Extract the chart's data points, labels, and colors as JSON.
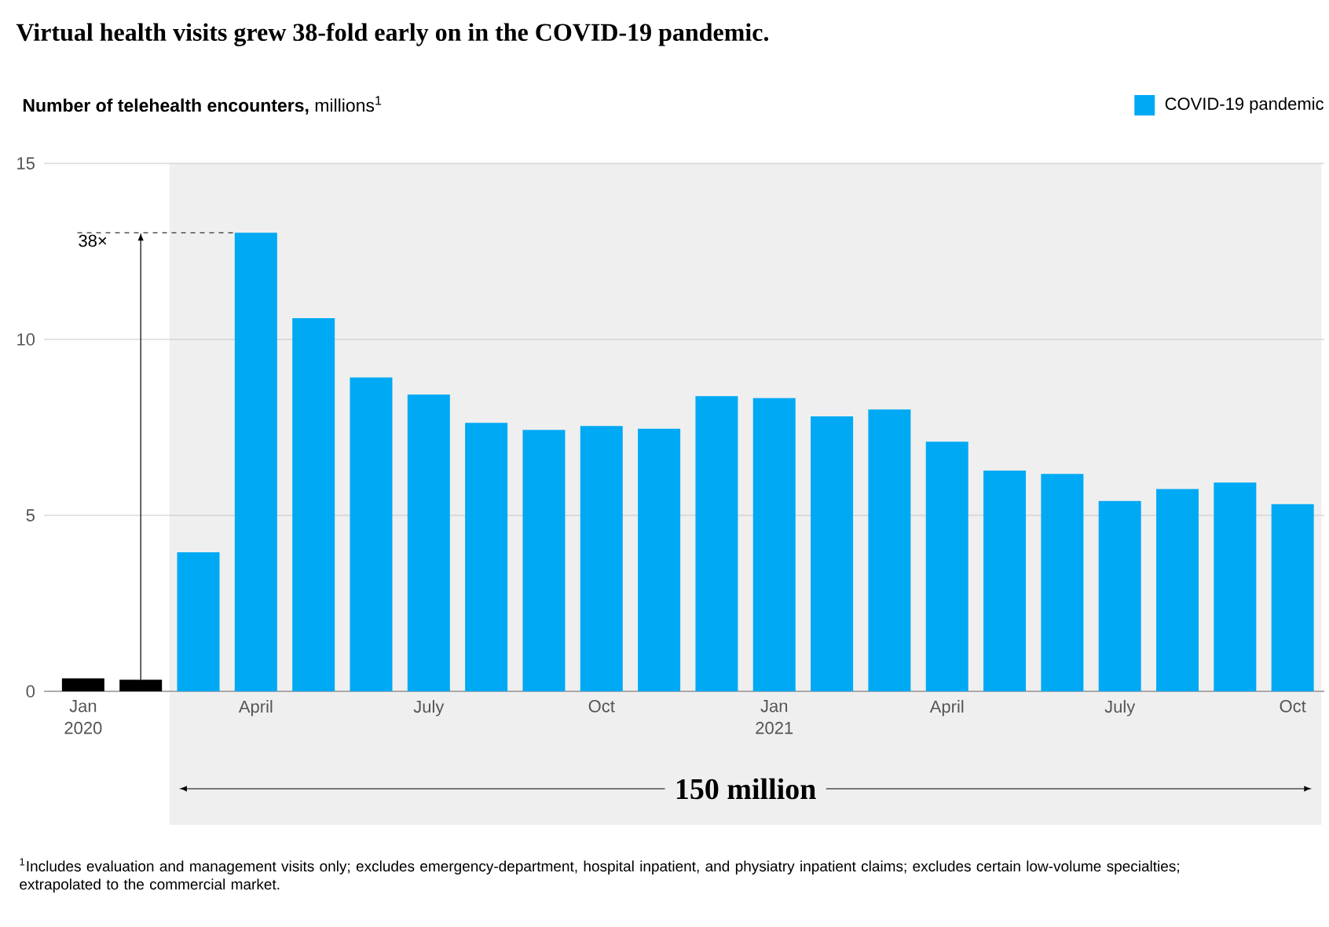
{
  "chart_data": {
    "type": "bar",
    "title": "Virtual health visits grew 38-fold early on in the COVID-19 pandemic.",
    "ylabel": "**Number of telehealth encounters,** millions$^{1}$",
    "categories": [
      "Jan 2020",
      null,
      null,
      "April",
      null,
      null,
      "July",
      null,
      null,
      "Oct",
      null,
      null,
      "Jan 2021",
      null,
      null,
      "April",
      null,
      null,
      "July",
      null,
      null,
      "Oct"
    ],
    "series": [
      {
        "color": "#000000",
        "values": [
          0.37,
          0.33,
          null,
          null,
          null,
          null,
          null,
          null,
          null,
          null,
          null,
          null,
          null,
          null,
          null,
          null,
          null,
          null,
          null,
          null,
          null,
          null
        ]
      },
      {
        "name": "COVID-19 pandemic",
        "color": "#00a9f4",
        "values": [
          null,
          null,
          3.95,
          13.03,
          10.6,
          8.92,
          8.43,
          7.63,
          7.43,
          7.54,
          7.46,
          8.39,
          8.33,
          7.81,
          8.01,
          7.09,
          6.27,
          6.18,
          5.41,
          5.75,
          5.93,
          5.32
        ]
      }
    ],
    "ylim": [
      0,
      15
    ],
    "yticks": [
      0,
      5,
      10,
      15
    ],
    "grid": "y",
    "legend": "top right",
    "ref_lines": [
      {
        "axis": "y",
        "value": 13.03,
        "label": "38×"
      }
    ],
    "annotations": [
      "150 million",
      "$^{1}$Includes evaluation and management visits only; excludes emergency-department, hospital inpatient, and physiatry inpatient claims; excludes certain low-volume specialties; extrapolated to the commercial market."
    ]
  }
}
